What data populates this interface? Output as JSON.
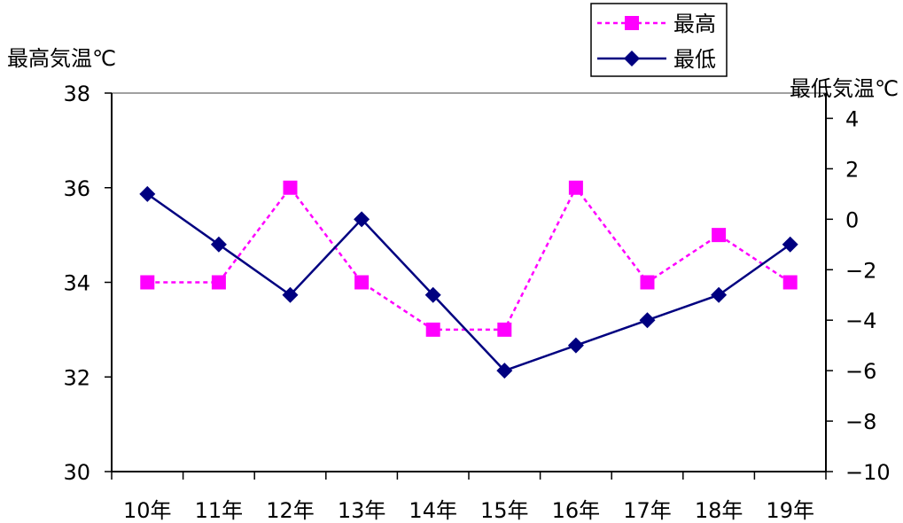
{
  "chart_data": {
    "type": "line",
    "categories": [
      "10年",
      "11年",
      "12年",
      "13年",
      "14年",
      "15年",
      "16年",
      "17年",
      "18年",
      "19年"
    ],
    "y_left": {
      "label": "最高気温℃",
      "ylim": [
        30,
        38
      ],
      "ticks": [
        30,
        32,
        34,
        36,
        38
      ]
    },
    "y_right": {
      "label": "最低気温℃",
      "ylim": [
        -10,
        5
      ],
      "ticks": [
        -10,
        -8,
        -6,
        -4,
        -2,
        0,
        2,
        4
      ]
    },
    "series": [
      {
        "name": "最高",
        "axis": "left",
        "values": [
          34,
          34,
          36,
          34,
          33,
          33,
          36,
          34,
          35,
          34
        ],
        "color": "#ff00ff",
        "line_style": "dashed",
        "marker": "square"
      },
      {
        "name": "最低",
        "axis": "right",
        "values": [
          1,
          -1,
          -3,
          0,
          -3,
          -6,
          -5,
          -4,
          -3,
          -1
        ],
        "color": "#000080",
        "line_style": "solid",
        "marker": "diamond"
      }
    ],
    "legend_position": "top-right",
    "grid": false
  }
}
